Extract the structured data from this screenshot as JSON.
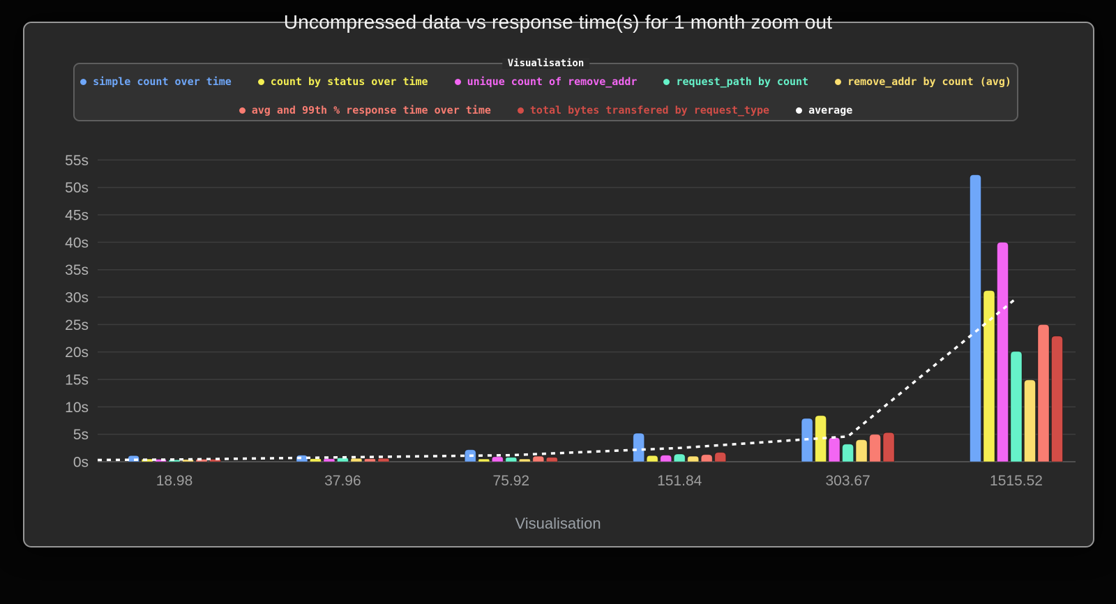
{
  "title": "Uncompressed data vs response time(s) for 1 month zoom out",
  "legend": {
    "title": "Visualisation"
  },
  "chart_data": {
    "type": "bar",
    "title": "Uncompressed data vs response time(s) for 1 month zoom out",
    "xlabel": "Visualisation",
    "ylabel": "",
    "unit": "s",
    "ylim": [
      0,
      57.5
    ],
    "ytick_step": 5,
    "ytick_labels": [
      "0s",
      "5s",
      "10s",
      "15s",
      "20s",
      "25s",
      "30s",
      "35s",
      "40s",
      "45s",
      "50s",
      "55s"
    ],
    "grid": true,
    "legend_position": "top",
    "categories": [
      "18.98",
      "37.96",
      "75.92",
      "151.84",
      "303.67",
      "1515.52"
    ],
    "series": [
      {
        "name": "simple count over time",
        "color": "#6fa7f9",
        "row": 0,
        "values": [
          1.1,
          1.2,
          2.2,
          5.2,
          7.9,
          52.3
        ]
      },
      {
        "name": "count by status over time",
        "color": "#f4ef53",
        "row": 0,
        "values": [
          0.5,
          0.55,
          0.5,
          1.1,
          8.4,
          31.2
        ]
      },
      {
        "name": "unique count of remove_addr",
        "color": "#f366f3",
        "row": 0,
        "values": [
          0.45,
          0.55,
          0.9,
          1.2,
          4.4,
          40.0
        ]
      },
      {
        "name": "request_path by count",
        "color": "#66f2c9",
        "row": 0,
        "values": [
          0.35,
          0.7,
          0.8,
          1.4,
          3.2,
          20.1
        ]
      },
      {
        "name": "remove_addr by count (avg)",
        "color": "#fbdf70",
        "row": 0,
        "values": [
          0.4,
          0.6,
          0.5,
          1.0,
          4.0,
          14.9
        ]
      },
      {
        "name": "avg and 99th % response time over time",
        "color": "#f97d72",
        "row": 1,
        "values": [
          0.45,
          0.55,
          1.0,
          1.3,
          5.0,
          25.0
        ]
      },
      {
        "name": "total bytes transfered by request_type",
        "color": "#d24d47",
        "row": 1,
        "values": [
          0.45,
          0.6,
          0.8,
          1.7,
          5.3,
          22.9
        ]
      }
    ],
    "line_series": {
      "name": "average",
      "color": "#ffffff",
      "style": "dashed",
      "row": 1,
      "values": [
        0.4,
        0.8,
        1.2,
        2.5,
        4.6,
        29.8
      ]
    }
  }
}
